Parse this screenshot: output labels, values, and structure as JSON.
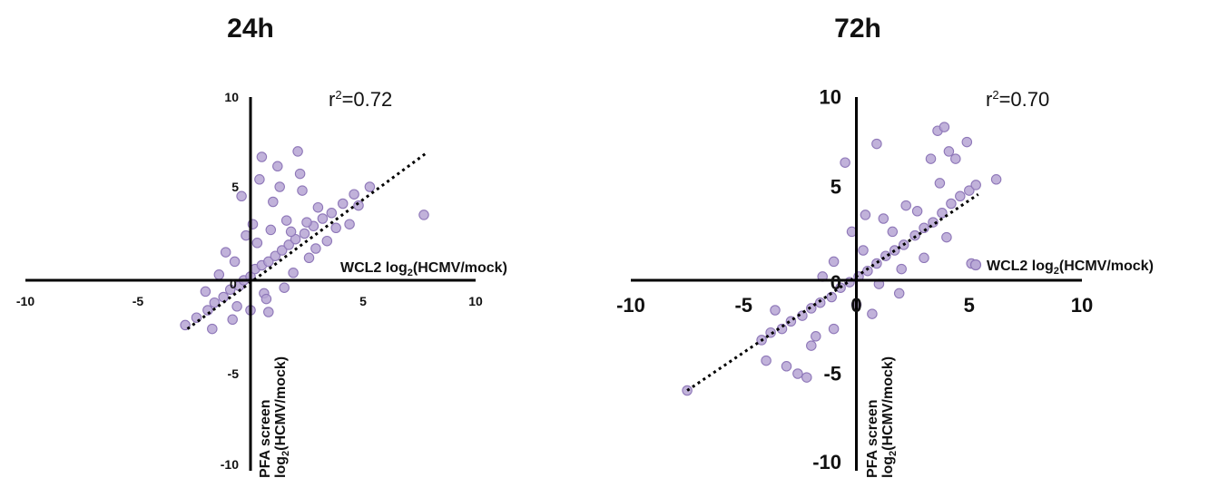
{
  "colors": {
    "point": "#8e77b8",
    "point_stroke": "#6f5a9a",
    "axis": "#000000",
    "trend": "#000000"
  },
  "chart_data": [
    {
      "type": "scatter",
      "title": "24h",
      "xlabel": "WCL2 log2(HCMV/mock)",
      "xlabel_main": "WCL2 log",
      "xlabel_sub": "2",
      "xlabel_rest": "(HCMV/mock)",
      "ylabel_line1": "PFA screen",
      "ylabel_line2_main": "log",
      "ylabel_line2_sub": "2",
      "ylabel_line2_rest": "(HCMV/mock)",
      "r2_prefix": "r",
      "r2_sup": "2",
      "r2_value": "=0.72",
      "xlim": [
        -10,
        10
      ],
      "ylim": [
        -10,
        10
      ],
      "xticks": [
        "-10",
        "-5",
        "0",
        "5",
        "10"
      ],
      "yticks": [
        "-10",
        "-5",
        "5",
        "10"
      ],
      "trendline": {
        "x": [
          -2.8,
          7.8
        ],
        "y": [
          -2.6,
          6.8
        ]
      },
      "series": [
        {
          "x": [
            -2.9,
            -2.4,
            -1.9,
            -1.6,
            -1.2,
            -0.9,
            -0.5,
            -0.3,
            0.0,
            0.2,
            0.5,
            0.8,
            1.1,
            1.4,
            1.7,
            2.0,
            2.4,
            2.8,
            3.2,
            3.6,
            4.1,
            4.6,
            5.3,
            -1.4,
            -0.7,
            0.3,
            0.9,
            1.6,
            2.3,
            3.0,
            -0.6,
            0.6,
            1.9,
            2.6,
            3.4,
            4.4,
            -0.4,
            0.4,
            1.2,
            2.1,
            -1.1,
            0.1,
            1.0,
            0.7,
            1.5,
            2.9,
            3.8,
            4.8,
            7.7,
            0.5,
            -0.2,
            1.3,
            2.2,
            0.8,
            -2.0,
            -1.7,
            -0.8,
            0.0,
            1.8,
            2.5
          ],
          "y": [
            -2.4,
            -2.0,
            -1.6,
            -1.2,
            -0.9,
            -0.5,
            -0.3,
            0.0,
            0.2,
            0.6,
            0.8,
            1.0,
            1.3,
            1.6,
            1.9,
            2.2,
            2.5,
            2.9,
            3.3,
            3.6,
            4.1,
            4.6,
            5.0,
            0.3,
            1.0,
            2.0,
            2.7,
            3.2,
            4.8,
            3.9,
            -1.4,
            -0.7,
            0.4,
            1.2,
            2.1,
            3.0,
            4.5,
            5.4,
            6.1,
            6.9,
            1.5,
            3.0,
            4.2,
            -1.0,
            -0.4,
            1.7,
            2.8,
            4.0,
            3.5,
            6.6,
            2.4,
            5.0,
            5.7,
            -1.7,
            -0.6,
            -2.6,
            -2.1,
            -1.6,
            2.6,
            3.1
          ]
        }
      ]
    },
    {
      "type": "scatter",
      "title": "72h",
      "xlabel": "WCL2 log2(HCMV/mock)",
      "legend_label_main": "WCL2 log",
      "legend_label_sub": "2",
      "legend_label_rest": "(HCMV/mock)",
      "legend_position": "right",
      "ylabel_line1": "PFA screen",
      "ylabel_line2_main": "log",
      "ylabel_line2_sub": "2",
      "ylabel_line2_rest": "(HCMV/mock)",
      "r2_prefix": "r",
      "r2_sup": "2",
      "r2_value": "=0.70",
      "xlim": [
        -10,
        10
      ],
      "ylim": [
        -10,
        10
      ],
      "xticks": [
        "-10",
        "-5",
        "0",
        "5",
        "10"
      ],
      "yticks": [
        "-10",
        "-5",
        "0",
        "5",
        "10"
      ],
      "trendline": {
        "x": [
          -7.5,
          5.4
        ],
        "y": [
          -5.9,
          4.6
        ]
      },
      "series": [
        {
          "x": [
            -7.5,
            -4.2,
            -3.8,
            -3.3,
            -2.9,
            -2.4,
            -2.0,
            -1.6,
            -1.1,
            -0.7,
            -0.3,
            0.1,
            0.5,
            0.9,
            1.3,
            1.7,
            2.1,
            2.6,
            3.0,
            3.4,
            3.8,
            4.2,
            4.6,
            5.0,
            5.3,
            6.2,
            -3.1,
            -2.0,
            -1.0,
            0.0,
            1.0,
            2.0,
            3.0,
            4.0,
            -3.6,
            -1.5,
            0.3,
            1.6,
            2.7,
            3.7,
            4.4,
            -1.0,
            -0.2,
            1.2,
            3.3,
            4.1,
            2.2,
            3.6,
            4.9,
            -2.6,
            -1.8,
            0.7,
            -0.5,
            1.9,
            0.4,
            -4.0,
            -2.2,
            5.1,
            0.9,
            3.9
          ],
          "y": [
            -5.9,
            -3.2,
            -2.8,
            -2.6,
            -2.2,
            -1.9,
            -1.5,
            -1.2,
            -0.9,
            -0.4,
            -0.1,
            0.2,
            0.5,
            0.9,
            1.3,
            1.6,
            1.9,
            2.4,
            2.8,
            3.1,
            3.6,
            4.1,
            4.5,
            4.8,
            5.1,
            5.4,
            -4.6,
            -3.5,
            -2.6,
            -1.3,
            -0.2,
            0.6,
            1.2,
            2.3,
            -1.6,
            0.2,
            1.6,
            2.6,
            3.7,
            5.2,
            6.5,
            1.0,
            2.6,
            3.3,
            6.5,
            6.9,
            4.0,
            8.0,
            7.4,
            -5.0,
            -3.0,
            -1.8,
            6.3,
            -0.7,
            3.5,
            -4.3,
            -5.2,
            0.9,
            7.3,
            8.2
          ]
        }
      ]
    }
  ]
}
